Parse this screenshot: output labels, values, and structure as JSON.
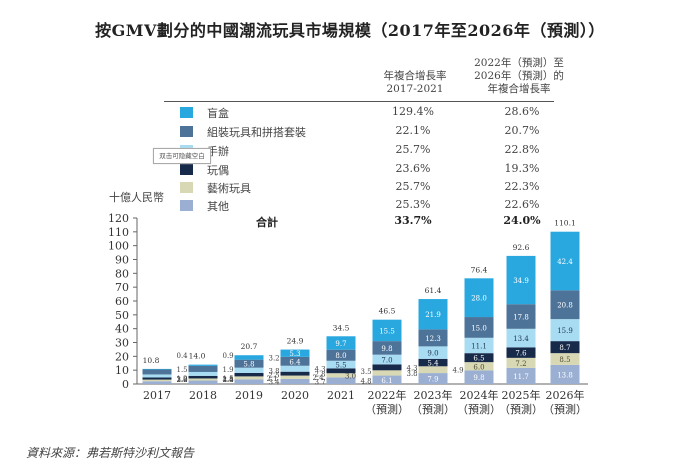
{
  "title": "按GMV劃分的中國潮流玩具市場規模（2017年至2026年（預測））",
  "table": {
    "col1_header": [
      "年複合增長率",
      "2017-2021"
    ],
    "col2_header": [
      "2022年（預測）至",
      "2026年（預測）的",
      "年複合增長率"
    ],
    "rows": [
      {
        "label": "盲盒",
        "cagr_2017_2021": "129.4%",
        "cagr_2022_2026": "28.6%",
        "color": "#29a8e0"
      },
      {
        "label": "組裝玩具和拼搭套裝",
        "cagr_2017_2021": "22.1%",
        "cagr_2022_2026": "20.7%",
        "color": "#4e7399"
      },
      {
        "label": "手辦",
        "cagr_2017_2021": "25.7%",
        "cagr_2022_2026": "22.8%",
        "color": "#a8dcf2"
      },
      {
        "label": "玩偶",
        "cagr_2017_2021": "23.6%",
        "cagr_2022_2026": "19.3%",
        "color": "#172a4a"
      },
      {
        "label": "藝術玩具",
        "cagr_2017_2021": "25.7%",
        "cagr_2022_2026": "22.3%",
        "color": "#d8d8b4"
      },
      {
        "label": "其他",
        "cagr_2017_2021": "25.3%",
        "cagr_2022_2026": "22.6%",
        "color": "#9aafd2"
      }
    ],
    "total": {
      "label": "合計",
      "cagr_2017_2021": "33.7%",
      "cagr_2022_2026": "24.0%"
    }
  },
  "tooltip": "双击可隐藏空白",
  "source": "資料來源：弗若斯特沙利文報告",
  "chart_data": {
    "type": "bar",
    "stacked": true,
    "title": "按GMV劃分的中國潮流玩具市場規模（2017年至2026年（預測））",
    "ylabel": "十億人民幣",
    "xlabel": "",
    "ylim": [
      0,
      120
    ],
    "yticks": [
      0,
      10,
      20,
      30,
      40,
      50,
      60,
      70,
      80,
      90,
      100,
      110,
      120
    ],
    "categories": [
      [
        "2017"
      ],
      [
        "2018"
      ],
      [
        "2019"
      ],
      [
        "2020"
      ],
      [
        "2021"
      ],
      [
        "2022年",
        "（預測）"
      ],
      [
        "2023年",
        "（預測）"
      ],
      [
        "2024年",
        "（預測）"
      ],
      [
        "2025年",
        "（預測）"
      ],
      [
        "2026年",
        "（預測）"
      ]
    ],
    "series": [
      {
        "name": "其他",
        "color": "#9aafd2",
        "values": [
          2.0,
          2.5,
          3.4,
          3.7,
          4.8,
          6.1,
          7.9,
          9.8,
          11.7,
          13.8
        ]
      },
      {
        "name": "藝術玩具",
        "color": "#d8d8b4",
        "values": [
          1.2,
          1.5,
          2.1,
          2.4,
          3.0,
          3.8,
          4.9,
          6.0,
          7.2,
          8.5
        ]
      },
      {
        "name": "玩偶",
        "color": "#172a4a",
        "values": [
          1.5,
          1.9,
          2.5,
          2.8,
          3.5,
          4.3,
          5.4,
          6.5,
          7.6,
          8.7
        ]
      },
      {
        "name": "手辦",
        "color": "#a8dcf2",
        "values": [
          2.2,
          2.8,
          3.8,
          4.3,
          5.5,
          7.0,
          9.0,
          11.1,
          13.4,
          15.9
        ]
      },
      {
        "name": "組裝玩具和拼搭套裝",
        "color": "#4e7399",
        "values": [
          3.6,
          4.4,
          5.8,
          6.4,
          8.0,
          9.8,
          12.3,
          15.0,
          17.8,
          20.8
        ]
      },
      {
        "name": "盲盒",
        "color": "#29a8e0",
        "values": [
          0.4,
          0.9,
          3.2,
          5.3,
          9.7,
          15.5,
          21.9,
          28.0,
          34.9,
          42.4
        ]
      }
    ],
    "totals": [
      10.8,
      14.0,
      20.7,
      24.9,
      34.5,
      46.5,
      61.4,
      76.4,
      92.6,
      110.1
    ],
    "grid": false,
    "legend": "top"
  }
}
